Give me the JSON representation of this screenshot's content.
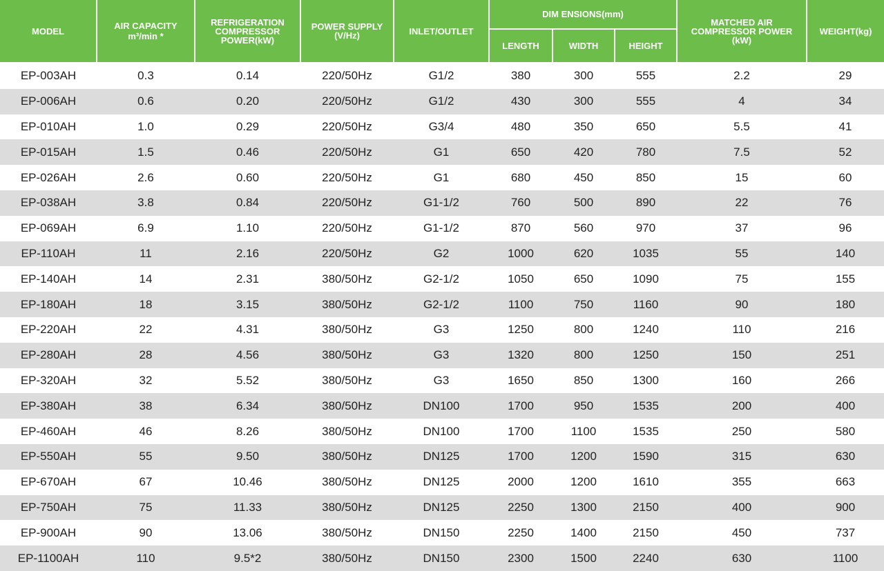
{
  "table": {
    "header": {
      "model": "MODEL",
      "air_capacity": "AIR CAPACITY",
      "air_capacity_unit": "m³/min *",
      "compressor_power": "REFRIGERATION COMPRESSOR POWER(kW)",
      "power_supply": "POWER SUPPLY (V/Hz)",
      "inlet_outlet": "INLET/OUTLET",
      "dimensions": "DIM ENSIONS(mm)",
      "length": "LENGTH",
      "width": "WIDTH",
      "height": "HEIGHT",
      "matched_power": "MATCHED AIR COMPRESSOR POWER (kW)",
      "weight": "WEIGHT(kg)"
    },
    "rows": [
      [
        "EP-003AH",
        "0.3",
        "0.14",
        "220/50Hz",
        "G1/2",
        "380",
        "300",
        "555",
        "2.2",
        "29"
      ],
      [
        "EP-006AH",
        "0.6",
        "0.20",
        "220/50Hz",
        "G1/2",
        "430",
        "300",
        "555",
        "4",
        "34"
      ],
      [
        "EP-010AH",
        "1.0",
        "0.29",
        "220/50Hz",
        "G3/4",
        "480",
        "350",
        "650",
        "5.5",
        "41"
      ],
      [
        "EP-015AH",
        "1.5",
        "0.46",
        "220/50Hz",
        "G1",
        "650",
        "420",
        "780",
        "7.5",
        "52"
      ],
      [
        "EP-026AH",
        "2.6",
        "0.60",
        "220/50Hz",
        "G1",
        "680",
        "450",
        "850",
        "15",
        "60"
      ],
      [
        "EP-038AH",
        "3.8",
        "0.84",
        "220/50Hz",
        "G1-1/2",
        "760",
        "500",
        "890",
        "22",
        "76"
      ],
      [
        "EP-069AH",
        "6.9",
        "1.10",
        "220/50Hz",
        "G1-1/2",
        "870",
        "560",
        "970",
        "37",
        "96"
      ],
      [
        "EP-110AH",
        "11",
        "2.16",
        "220/50Hz",
        "G2",
        "1000",
        "620",
        "1035",
        "55",
        "140"
      ],
      [
        "EP-140AH",
        "14",
        "2.31",
        "380/50Hz",
        "G2-1/2",
        "1050",
        "650",
        "1090",
        "75",
        "155"
      ],
      [
        "EP-180AH",
        "18",
        "3.15",
        "380/50Hz",
        "G2-1/2",
        "1100",
        "750",
        "1160",
        "90",
        "180"
      ],
      [
        "EP-220AH",
        "22",
        "4.31",
        "380/50Hz",
        "G3",
        "1250",
        "800",
        "1240",
        "110",
        "216"
      ],
      [
        "EP-280AH",
        "28",
        "4.56",
        "380/50Hz",
        "G3",
        "1320",
        "800",
        "1250",
        "150",
        "251"
      ],
      [
        "EP-320AH",
        "32",
        "5.52",
        "380/50Hz",
        "G3",
        "1650",
        "850",
        "1300",
        "160",
        "266"
      ],
      [
        "EP-380AH",
        "38",
        "6.34",
        "380/50Hz",
        "DN100",
        "1700",
        "950",
        "1535",
        "200",
        "400"
      ],
      [
        "EP-460AH",
        "46",
        "8.26",
        "380/50Hz",
        "DN100",
        "1700",
        "1100",
        "1535",
        "250",
        "580"
      ],
      [
        "EP-550AH",
        "55",
        "9.50",
        "380/50Hz",
        "DN125",
        "1700",
        "1200",
        "1590",
        "315",
        "630"
      ],
      [
        "EP-670AH",
        "67",
        "10.46",
        "380/50Hz",
        "DN125",
        "2000",
        "1200",
        "1610",
        "355",
        "663"
      ],
      [
        "EP-750AH",
        "75",
        "11.33",
        "380/50Hz",
        "DN125",
        "2250",
        "1300",
        "2150",
        "400",
        "900"
      ],
      [
        "EP-900AH",
        "90",
        "13.06",
        "380/50Hz",
        "DN150",
        "2250",
        "1400",
        "2150",
        "450",
        "737"
      ],
      [
        "EP-1100AH",
        "110",
        "9.5*2",
        "380/50Hz",
        "DN150",
        "2300",
        "1500",
        "2240",
        "630",
        "1100"
      ]
    ]
  }
}
